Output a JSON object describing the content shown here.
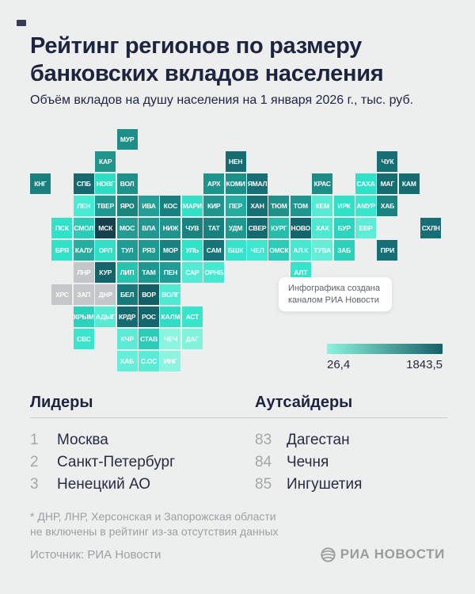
{
  "header": {
    "title_line1": "Рейтинг регионов по размеру",
    "title_line2": "банковских вкладов населения",
    "subtitle": "Объём вкладов на душу населения на 1 января 2026 г., тыс. руб."
  },
  "map": {
    "tooltip_line1": "Инфографика создана",
    "tooltip_line2": "каналом РИА Новости"
  },
  "legend": {
    "min_label": "26,4",
    "max_label": "1843,5",
    "gradient_from": "#8bf4dd",
    "gradient_to": "#175f68"
  },
  "lists": {
    "leaders_header": "Лидеры",
    "outsiders_header": "Аутсайдеры"
  },
  "footnote": {
    "line1": "* ДНР, ЛНР, Херсонская и Запорожская области",
    "line2": "не включены в рейтинг из-за отсутствия данных"
  },
  "footer": {
    "source": "Источник: РИА Новости",
    "logo_text": "РИА НОВОСТИ"
  },
  "chart_data": {
    "type": "heatmap",
    "subtype": "tile-grid-choropleth-map",
    "title": "Рейтинг регионов по размеру банковских вкладов населения",
    "subtitle": "Объём вкладов на душу населения на 1 января 2026 г., тыс. руб.",
    "scale": {
      "min": 26.4,
      "max": 1843.5,
      "unit": "тыс. руб.",
      "legend_position": "right-below-map"
    },
    "leaders": [
      {
        "rank": "1",
        "region": "Москва"
      },
      {
        "rank": "2",
        "region": "Санкт-Петербург"
      },
      {
        "rank": "3",
        "region": "Ненецкий АО"
      }
    ],
    "outsiders": [
      {
        "rank": "83",
        "region": "Дагестан"
      },
      {
        "rank": "84",
        "region": "Чечня"
      },
      {
        "rank": "85",
        "region": "Ингушетия"
      }
    ],
    "excluded_regions_note": "ДНР, ЛНР, Херсонская и Запорожская области не включены в рейтинг из-за отсутствия данных",
    "excluded_tile_color": "#c4c7c8",
    "tiles": [
      {
        "code": "МУР",
        "row": 0,
        "col": 4,
        "color": "#1d8e88"
      },
      {
        "code": "КАР",
        "row": 1,
        "col": 3,
        "color": "#1f958c"
      },
      {
        "code": "НЕН",
        "row": 1,
        "col": 9,
        "color": "#156d72"
      },
      {
        "code": "ЧУК",
        "row": 1,
        "col": 16,
        "color": "#166f74"
      },
      {
        "code": "КНГ",
        "row": 2,
        "col": 0,
        "color": "#19807d"
      },
      {
        "code": "СПБ",
        "row": 2,
        "col": 2,
        "color": "#156a70"
      },
      {
        "code": "НОВГ",
        "row": 2,
        "col": 3,
        "color": "#2bdfc5"
      },
      {
        "code": "ВОЛ",
        "row": 2,
        "col": 4,
        "color": "#1e928a"
      },
      {
        "code": "АРХ",
        "row": 2,
        "col": 8,
        "color": "#1d948c"
      },
      {
        "code": "КОМИ",
        "row": 2,
        "col": 9,
        "color": "#1b9089"
      },
      {
        "code": "ЯМАЛ",
        "row": 2,
        "col": 10,
        "color": "#166f75"
      },
      {
        "code": "КРАС",
        "row": 2,
        "col": 13,
        "color": "#1d8d86"
      },
      {
        "code": "САХА",
        "row": 2,
        "col": 15,
        "color": "#2de2c7"
      },
      {
        "code": "МАГ",
        "row": 2,
        "col": 16,
        "color": "#156d72"
      },
      {
        "code": "КАМ",
        "row": 2,
        "col": 17,
        "color": "#156d72"
      },
      {
        "code": "ЛЕН",
        "row": 3,
        "col": 2,
        "color": "#46ecd2"
      },
      {
        "code": "ТВЕР",
        "row": 3,
        "col": 3,
        "color": "#1e9890"
      },
      {
        "code": "ЯРО",
        "row": 3,
        "col": 4,
        "color": "#19857f"
      },
      {
        "code": "ИВА",
        "row": 3,
        "col": 5,
        "color": "#22a096"
      },
      {
        "code": "КОС",
        "row": 3,
        "col": 6,
        "color": "#18817d"
      },
      {
        "code": "МАРИ",
        "row": 3,
        "col": 7,
        "color": "#2fdfc6"
      },
      {
        "code": "КИР",
        "row": 3,
        "col": 8,
        "color": "#1e958d"
      },
      {
        "code": "ПЕР",
        "row": 3,
        "col": 9,
        "color": "#23ab9d"
      },
      {
        "code": "ХАН",
        "row": 3,
        "col": 10,
        "color": "#156f73"
      },
      {
        "code": "ТЮМ",
        "row": 3,
        "col": 11,
        "color": "#1e9189"
      },
      {
        "code": "ТОМ",
        "row": 3,
        "col": 12,
        "color": "#1e968f"
      },
      {
        "code": "КЕМ",
        "row": 3,
        "col": 13,
        "color": "#58ebd3"
      },
      {
        "code": "ИРК",
        "row": 3,
        "col": 14,
        "color": "#2de0c6"
      },
      {
        "code": "АМУР",
        "row": 3,
        "col": 15,
        "color": "#38e6cb"
      },
      {
        "code": "ХАБ",
        "row": 3,
        "col": 16,
        "color": "#19837f"
      },
      {
        "code": "ПСК",
        "row": 4,
        "col": 1,
        "color": "#2fe3c8"
      },
      {
        "code": "СМОЛ",
        "row": 4,
        "col": 2,
        "color": "#2bccb7"
      },
      {
        "code": "МСК",
        "row": 4,
        "col": 3,
        "color": "#15404d"
      },
      {
        "code": "МОС",
        "row": 4,
        "col": 4,
        "color": "#269b93"
      },
      {
        "code": "ВЛА",
        "row": 4,
        "col": 5,
        "color": "#21978f"
      },
      {
        "code": "НИЖ",
        "row": 4,
        "col": 6,
        "color": "#1e948c"
      },
      {
        "code": "ЧУВ",
        "row": 4,
        "col": 7,
        "color": "#19837f"
      },
      {
        "code": "ТАТ",
        "row": 4,
        "col": 8,
        "color": "#18817e"
      },
      {
        "code": "УДМ",
        "row": 4,
        "col": 9,
        "color": "#1f9990"
      },
      {
        "code": "СВЕР",
        "row": 4,
        "col": 10,
        "color": "#156a6f"
      },
      {
        "code": "КУРГ",
        "row": 4,
        "col": 11,
        "color": "#28bcab"
      },
      {
        "code": "НОВО",
        "row": 4,
        "col": 12,
        "color": "#14666d"
      },
      {
        "code": "ХАК",
        "row": 4,
        "col": 13,
        "color": "#4fe9d1"
      },
      {
        "code": "БУР",
        "row": 4,
        "col": 14,
        "color": "#2cd5bd"
      },
      {
        "code": "ЕВР",
        "row": 4,
        "col": 15,
        "color": "#5dedd6"
      },
      {
        "code": "СХЛН",
        "row": 4,
        "col": 18,
        "color": "#166f75"
      },
      {
        "code": "БРЯ",
        "row": 5,
        "col": 1,
        "color": "#30e2c7"
      },
      {
        "code": "КАЛУ",
        "row": 5,
        "col": 2,
        "color": "#24ae9f"
      },
      {
        "code": "ОРЛ",
        "row": 5,
        "col": 3,
        "color": "#2fe0c5"
      },
      {
        "code": "ТУЛ",
        "row": 5,
        "col": 4,
        "color": "#1e9b92"
      },
      {
        "code": "РЯЗ",
        "row": 5,
        "col": 5,
        "color": "#1e9a91"
      },
      {
        "code": "МОР",
        "row": 5,
        "col": 6,
        "color": "#178280"
      },
      {
        "code": "УЛЬ",
        "row": 5,
        "col": 7,
        "color": "#2fe3c8"
      },
      {
        "code": "САМ",
        "row": 5,
        "col": 8,
        "color": "#15747a"
      },
      {
        "code": "БШК",
        "row": 5,
        "col": 9,
        "color": "#33e4c9"
      },
      {
        "code": "ЧЕЛ",
        "row": 5,
        "col": 10,
        "color": "#3de7cd"
      },
      {
        "code": "ОМСК",
        "row": 5,
        "col": 11,
        "color": "#2accb8"
      },
      {
        "code": "АЛ.К",
        "row": 5,
        "col": 12,
        "color": "#47e8d0"
      },
      {
        "code": "ТУВА",
        "row": 5,
        "col": 13,
        "color": "#62eed7"
      },
      {
        "code": "ЗАБ",
        "row": 5,
        "col": 14,
        "color": "#2bd1bb"
      },
      {
        "code": "ПРИ",
        "row": 5,
        "col": 16,
        "color": "#156f75"
      },
      {
        "code": "ЛНР",
        "row": 6,
        "col": 2,
        "color": "#c4c7c8"
      },
      {
        "code": "КУР",
        "row": 6,
        "col": 3,
        "color": "#14646c"
      },
      {
        "code": "ЛИП",
        "row": 6,
        "col": 4,
        "color": "#26c3b0"
      },
      {
        "code": "ТАМ",
        "row": 6,
        "col": 5,
        "color": "#1d9890"
      },
      {
        "code": "ПЕН",
        "row": 6,
        "col": 6,
        "color": "#1f9c93"
      },
      {
        "code": "САР",
        "row": 6,
        "col": 7,
        "color": "#55ead3"
      },
      {
        "code": "ОРНБ",
        "row": 6,
        "col": 8,
        "color": "#47e8d0"
      },
      {
        "code": "АЛТ",
        "row": 6,
        "col": 12,
        "color": "#35e5ca"
      },
      {
        "code": "ХРС",
        "row": 7,
        "col": 1,
        "color": "#c4c7c8"
      },
      {
        "code": "ЗАП",
        "row": 7,
        "col": 2,
        "color": "#c4c7c8"
      },
      {
        "code": "ДНР",
        "row": 7,
        "col": 3,
        "color": "#c4c7c8"
      },
      {
        "code": "БЕЛ",
        "row": 7,
        "col": 4,
        "color": "#177a7a"
      },
      {
        "code": "ВОР",
        "row": 7,
        "col": 5,
        "color": "#135f66"
      },
      {
        "code": "ВОЛГ",
        "row": 7,
        "col": 6,
        "color": "#50e9d2"
      },
      {
        "code": "КРЫМ",
        "row": 8,
        "col": 2,
        "color": "#2bd2bc"
      },
      {
        "code": "АДЫГ",
        "row": 8,
        "col": 3,
        "color": "#57ebd4"
      },
      {
        "code": "КРДР",
        "row": 8,
        "col": 4,
        "color": "#146a70"
      },
      {
        "code": "РОС",
        "row": 8,
        "col": 5,
        "color": "#14666d"
      },
      {
        "code": "КАЛМ",
        "row": 8,
        "col": 6,
        "color": "#30dcc3"
      },
      {
        "code": "АСТ",
        "row": 8,
        "col": 7,
        "color": "#36e5ca"
      },
      {
        "code": "СВС",
        "row": 9,
        "col": 2,
        "color": "#39e6cc"
      },
      {
        "code": "КЧР",
        "row": 9,
        "col": 4,
        "color": "#5cecd5"
      },
      {
        "code": "СТАВ",
        "row": 9,
        "col": 5,
        "color": "#2accb7"
      },
      {
        "code": "ЧЕЧ",
        "row": 9,
        "col": 6,
        "color": "#8bf4de"
      },
      {
        "code": "ДАГ",
        "row": 9,
        "col": 7,
        "color": "#80f3db"
      },
      {
        "code": "КАБ",
        "row": 10,
        "col": 4,
        "color": "#66efd8"
      },
      {
        "code": "С.ОС",
        "row": 10,
        "col": 5,
        "color": "#5aebd4"
      },
      {
        "code": "ИНГ",
        "row": 10,
        "col": 6,
        "color": "#8df5df"
      }
    ]
  }
}
